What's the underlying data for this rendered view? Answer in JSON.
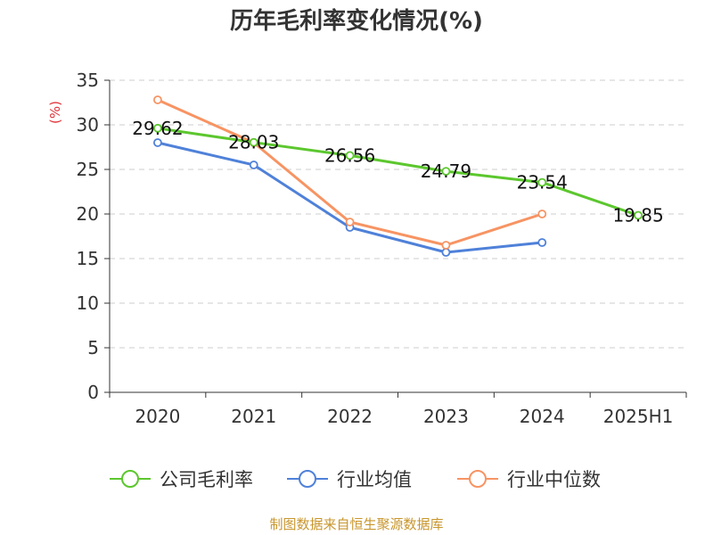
{
  "colors": {
    "company": "#5cc72e",
    "industry_avg": "#4f81d9",
    "industry_median": "#f79463",
    "ylabel": "#e0343a",
    "source": "#c8962e",
    "axis": "#333333",
    "grid": "#cccccc"
  },
  "chart_data": {
    "type": "line",
    "title": "历年毛利率变化情况(%)",
    "ylabel": "(%)",
    "xlabel": "",
    "categories": [
      "2020",
      "2021",
      "2022",
      "2023",
      "2024",
      "2025H1"
    ],
    "ylim": [
      0,
      35
    ],
    "yticks": [
      "0",
      "5",
      "10",
      "15",
      "20",
      "25",
      "30",
      "35"
    ],
    "grid": "horizontal-dashed",
    "legend_position": "bottom",
    "series": [
      {
        "name": "公司毛利率",
        "color_key": "company",
        "values": [
          29.62,
          28.03,
          26.56,
          24.79,
          23.54,
          19.85
        ],
        "labels": [
          "29.62",
          "28.03",
          "26.56",
          "24.79",
          "23.54",
          "19.85"
        ]
      },
      {
        "name": "行业均值",
        "color_key": "industry_avg",
        "values": [
          28.0,
          25.5,
          18.5,
          15.7,
          16.8,
          null
        ]
      },
      {
        "name": "行业中位数",
        "color_key": "industry_median",
        "values": [
          32.8,
          28.0,
          19.1,
          16.5,
          20.0,
          null
        ]
      }
    ]
  },
  "footer": {
    "source": "制图数据来自恒生聚源数据库"
  }
}
